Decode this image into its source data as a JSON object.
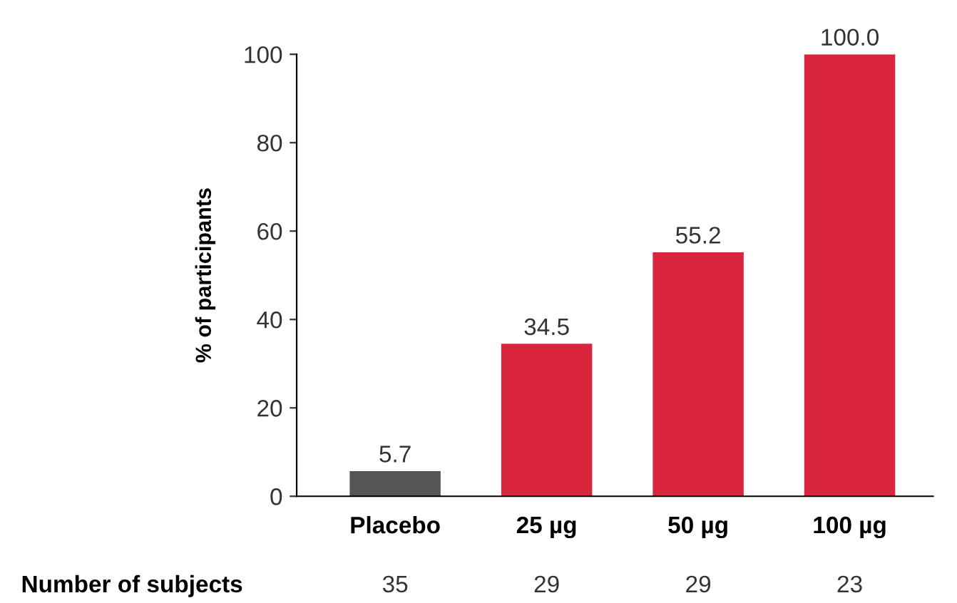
{
  "chart_data": {
    "type": "bar",
    "ylabel": "% of participants",
    "categories": [
      "Placebo",
      "25 µg",
      "50 µg",
      "100 µg"
    ],
    "values": [
      5.7,
      34.5,
      55.2,
      100.0
    ],
    "colors": [
      "#555555",
      "#d9263d",
      "#d9263d",
      "#d9263d"
    ],
    "value_labels": [
      "5.7",
      "34.5",
      "55.2",
      "100.0"
    ],
    "ylim": [
      0,
      100
    ],
    "yticks": [
      0,
      20,
      40,
      60,
      80,
      100
    ],
    "grid": false,
    "annotations": [
      "Number of subjects",
      "35",
      "29",
      "29",
      "23"
    ]
  }
}
